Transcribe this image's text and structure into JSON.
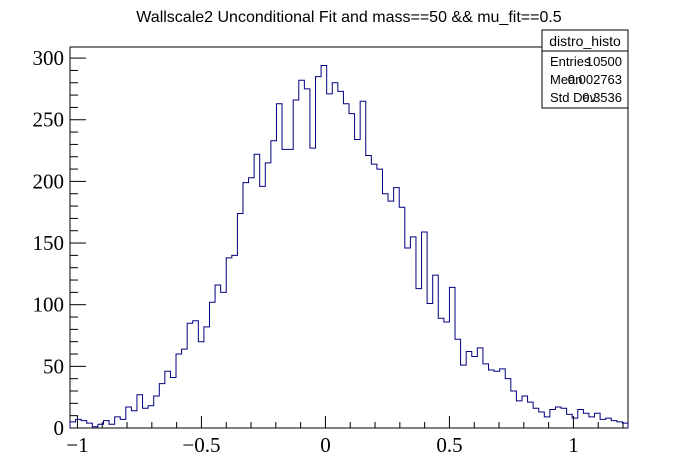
{
  "chart_data": {
    "type": "bar",
    "title": "Wallscale2 Unconditional Fit and mass==50 && mu_fit==0.5",
    "xlabel": "",
    "ylabel": "",
    "xlim": [
      -1.03,
      1.22
    ],
    "ylim": [
      0,
      309
    ],
    "x_ticks": [
      "−1",
      "−0.5",
      "0",
      "0.5",
      "1"
    ],
    "x_tick_values": [
      -1,
      -0.5,
      0,
      0.5,
      1
    ],
    "y_ticks": [
      "0",
      "50",
      "100",
      "150",
      "200",
      "250",
      "300"
    ],
    "y_tick_values": [
      0,
      50,
      100,
      150,
      200,
      250,
      300
    ],
    "bin_start": -1.03,
    "bin_width": 0.0225,
    "values": [
      5,
      7,
      6,
      4,
      1,
      3,
      6,
      3,
      9,
      7,
      17,
      14,
      27,
      16,
      18,
      26,
      36,
      46,
      41,
      60,
      64,
      85,
      87,
      70,
      82,
      102,
      116,
      110,
      138,
      140,
      174,
      199,
      203,
      222,
      196,
      215,
      233,
      263,
      226,
      226,
      266,
      282,
      275,
      227,
      285,
      294,
      271,
      280,
      273,
      263,
      255,
      234,
      265,
      221,
      214,
      210,
      190,
      184,
      195,
      179,
      146,
      155,
      113,
      159,
      101,
      124,
      89,
      86,
      114,
      72,
      51,
      62,
      58,
      65,
      52,
      47,
      46,
      48,
      40,
      30,
      22,
      26,
      21,
      16,
      13,
      9,
      15,
      17,
      16,
      11,
      8,
      15,
      12,
      9,
      12,
      7,
      8,
      6,
      5,
      4
    ],
    "line_color": "#000080",
    "stats_box": {
      "name": "distro_histo",
      "rows": [
        {
          "label": "Entries",
          "value": "10500"
        },
        {
          "label": "Mean",
          "value": "0.002763"
        },
        {
          "label": "Std Dev",
          "value": "0.3536"
        }
      ]
    }
  }
}
